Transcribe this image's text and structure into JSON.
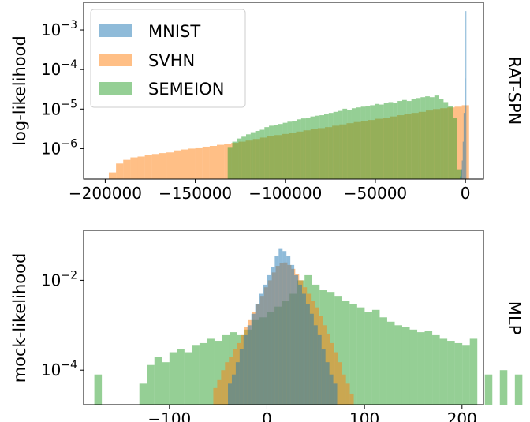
{
  "colors": {
    "mnist": "#1f77b4",
    "svhn": "#ff7f0e",
    "semeion": "#2ca02c",
    "bar_alpha": 0.5
  },
  "chart_data": [
    {
      "type": "histogram",
      "ylabel": "log-likelihood",
      "side_label": "RAT-SPN",
      "yscale": "log",
      "xlim": [
        -212000,
        10000
      ],
      "ylim": [
        1.7e-07,
        0.005
      ],
      "xticks": [
        -200000,
        -150000,
        -100000,
        -50000,
        0
      ],
      "xtick_labels": [
        "−200000",
        "−150000",
        "−100000",
        "−50000",
        "0"
      ],
      "yticks": [
        1e-06,
        1e-05,
        0.0001,
        0.001
      ],
      "ytick_labels": [
        {
          "base": "10",
          "exp": "−6"
        },
        {
          "base": "10",
          "exp": "−5"
        },
        {
          "base": "10",
          "exp": "−4"
        },
        {
          "base": "10",
          "exp": "−3"
        }
      ],
      "legend": {
        "placement": "top-left",
        "entries": [
          {
            "key": "mnist",
            "label": "MNIST"
          },
          {
            "key": "svhn",
            "label": "SVHN"
          },
          {
            "key": "semeion",
            "label": "SEMEION"
          }
        ]
      },
      "series": [
        {
          "key": "svhn",
          "label": "SVHN",
          "bin_start": -198000,
          "bin_width": 4000,
          "values": [
            2.5e-07,
            4.2e-07,
            5.2e-07,
            6e-07,
            6.3e-07,
            7e-07,
            7.3e-07,
            7.7e-07,
            8e-07,
            9e-07,
            9.5e-07,
            1e-06,
            1.07e-06,
            1.12e-06,
            1.17e-06,
            1.25e-06,
            1.3e-06,
            1.4e-06,
            1.5e-06,
            1.6e-06,
            1.75e-06,
            1.9e-06,
            2.05e-06,
            2.2e-06,
            2.35e-06,
            2.5e-06,
            2.7e-06,
            2.9e-06,
            3.1e-06,
            3.3e-06,
            3.5e-06,
            3.8e-06,
            4.1e-06,
            4.4e-06,
            4.7e-06,
            5e-06,
            5.3e-06,
            5.7e-06,
            6.1e-06,
            6.5e-06,
            7e-06,
            7.5e-06,
            8e-06,
            8.5e-06,
            9.2e-06,
            1e-05,
            1.05e-05,
            1.1e-05,
            1.15e-05,
            1.25e-05
          ]
        },
        {
          "key": "semeion",
          "label": "SEMEION",
          "bin_start": -132000,
          "bin_width": 2550,
          "values": [
            1.1e-06,
            1.5e-06,
            1.8e-06,
            2e-06,
            2.3e-06,
            2.6e-06,
            2.8e-06,
            3e-06,
            3.5e-06,
            3.8e-06,
            4e-06,
            4.2e-06,
            4.5e-06,
            4.8e-06,
            5e-06,
            5.5e-06,
            5.8e-06,
            6e-06,
            6.5e-06,
            6.8e-06,
            7e-06,
            7.5e-06,
            8e-06,
            8.5e-06,
            9e-06,
            1.02e-05,
            9.5e-06,
            1.05e-05,
            1.1e-05,
            1.15e-05,
            1.2e-05,
            1.25e-05,
            1.35e-05,
            1.3e-05,
            1.4e-05,
            1.5e-05,
            1.45e-05,
            1.6e-05,
            1.7e-05,
            1.6e-05,
            1.8e-05,
            1.9e-05,
            2e-05,
            2.1e-05,
            2e-05,
            2.2e-05,
            1.8e-05,
            1.5e-05,
            1.2e-05,
            6e-06,
            3e-07
          ]
        },
        {
          "key": "mnist",
          "label": "MNIST",
          "bin_start": -3000,
          "bin_width": 500,
          "values": [
            2e-07,
            3e-07,
            5e-07,
            1.5e-06,
            8e-06,
            6e-05,
            0.003
          ]
        }
      ]
    },
    {
      "type": "histogram",
      "ylabel": "mock-likelihood",
      "side_label": "MLP",
      "yscale": "log",
      "xlim": [
        -188,
        222
      ],
      "ylim": [
        1.7e-05,
        0.13
      ],
      "xticks": [
        -100,
        0,
        100,
        200
      ],
      "xtick_labels": [
        "−100",
        "0",
        "100",
        "200"
      ],
      "yticks": [
        0.0001,
        0.01
      ],
      "ytick_labels": [
        {
          "base": "10",
          "exp": "−4"
        },
        {
          "base": "10",
          "exp": "−2"
        }
      ],
      "series": [
        {
          "key": "semeion",
          "label": "SEMEION",
          "bin_start": -177,
          "bin_width": 7.7,
          "values": [
            8e-05,
            0,
            0,
            0,
            0,
            0,
            5e-05,
            0.00013,
            0.0002,
            0.00015,
            0.00025,
            0.0003,
            0.00025,
            0.00035,
            0.0004,
            0.0005,
            0.00045,
            0.0006,
            0.0007,
            0.0006,
            0.0008,
            0.0013,
            0.0015,
            0.002,
            0.0026,
            0.0035,
            0.005,
            0.01,
            0.013,
            0.008,
            0.006,
            0.0055,
            0.0045,
            0.0035,
            0.003,
            0.0025,
            0.002,
            0.0022,
            0.0015,
            0.0012,
            0.001,
            0.0009,
            0.0008,
            0.0007,
            0.00075,
            0.0006,
            0.0005,
            0.00045,
            0.0004,
            0.00035,
            0.0005,
            0,
            8e-05,
            0,
            0.0001,
            0,
            8e-05,
            0,
            0,
            0
          ]
        },
        {
          "key": "svhn",
          "label": "SVHN",
          "bin_start": -55,
          "bin_width": 4,
          "values": [
            4e-05,
            6e-05,
            0.0001,
            0.00015,
            0.0002,
            0.0003,
            0.0004,
            0.0006,
            0.0009,
            0.0013,
            0.002,
            0.003,
            0.0045,
            0.007,
            0.01,
            0.015,
            0.021,
            0.024,
            0.025,
            0.022,
            0.018,
            0.014,
            0.01,
            0.007,
            0.005,
            0.0035,
            0.0025,
            0.0016,
            0.001,
            0.00065,
            0.0004,
            0.00025,
            0.00015,
            8e-05,
            5e-05,
            3e-05
          ]
        },
        {
          "key": "mnist",
          "label": "MNIST",
          "bin_start": -40,
          "bin_width": 4,
          "values": [
            5e-05,
            8e-05,
            0.00015,
            0.0003,
            0.0006,
            0.001,
            0.0018,
            0.003,
            0.005,
            0.008,
            0.013,
            0.02,
            0.035,
            0.05,
            0.045,
            0.035,
            0.022,
            0.013,
            0.008,
            0.005,
            0.003,
            0.0018,
            0.001,
            0.0006,
            0.0003,
            0.00015,
            8e-05,
            5e-05
          ]
        }
      ]
    }
  ]
}
